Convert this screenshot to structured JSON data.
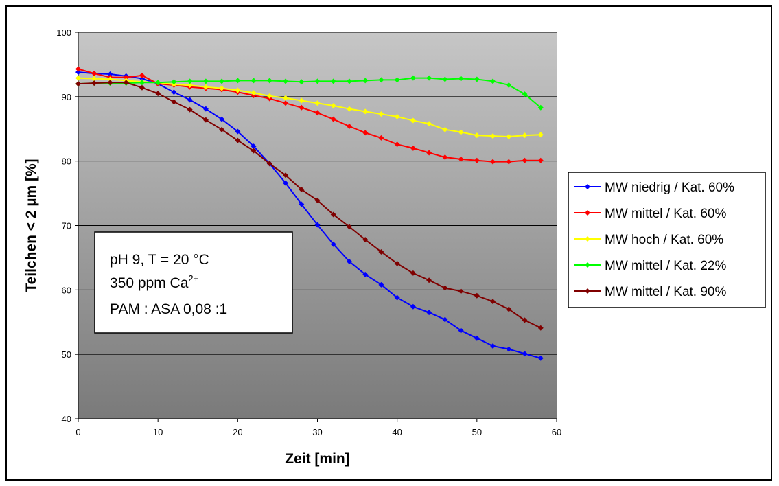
{
  "chart_data": {
    "type": "line",
    "xlabel": "Zeit [min]",
    "ylabel": "Teilchen < 2 µm [%]",
    "xlim": [
      0,
      60
    ],
    "ylim": [
      40,
      100
    ],
    "xticks": [
      0,
      10,
      20,
      30,
      40,
      50,
      60
    ],
    "yticks": [
      40,
      50,
      60,
      70,
      80,
      90,
      100
    ],
    "grid": "horizontal",
    "legend_position": "right",
    "x": [
      0,
      2,
      4,
      6,
      8,
      10,
      12,
      14,
      16,
      18,
      20,
      22,
      24,
      26,
      28,
      30,
      32,
      34,
      36,
      38,
      40,
      42,
      44,
      46,
      48,
      50,
      52,
      54,
      56,
      58
    ],
    "series": [
      {
        "name": "MW niedrig / Kat. 60%",
        "color": "#0000ff",
        "values": [
          93.8,
          93.6,
          93.5,
          93.2,
          92.8,
          92.0,
          90.7,
          89.5,
          88.1,
          86.5,
          84.6,
          82.3,
          79.6,
          76.6,
          73.3,
          70.1,
          67.1,
          64.4,
          62.4,
          60.8,
          58.8,
          57.4,
          56.5,
          55.4,
          53.7,
          52.5,
          51.3,
          50.8,
          50.1,
          49.4
        ]
      },
      {
        "name": "MW mittel / Kat. 60%",
        "color": "#ff0000",
        "values": [
          94.3,
          93.6,
          93.0,
          93.0,
          93.3,
          92.0,
          91.8,
          91.5,
          91.3,
          91.1,
          90.7,
          90.2,
          89.7,
          89.0,
          88.3,
          87.5,
          86.5,
          85.4,
          84.4,
          83.6,
          82.6,
          82.0,
          81.3,
          80.6,
          80.3,
          80.1,
          79.9,
          79.9,
          80.1,
          80.1
        ]
      },
      {
        "name": "MW hoch / Kat. 60%",
        "color": "#ffff00",
        "values": [
          92.9,
          92.8,
          92.7,
          92.5,
          92.3,
          92.2,
          91.9,
          91.8,
          91.5,
          91.3,
          91.0,
          90.6,
          90.1,
          89.8,
          89.4,
          89.0,
          88.6,
          88.1,
          87.7,
          87.3,
          86.9,
          86.3,
          85.8,
          84.9,
          84.5,
          84.0,
          83.9,
          83.8,
          84.0,
          84.1
        ]
      },
      {
        "name": "MW mittel / Kat. 22%",
        "color": "#00ff00",
        "values": [
          92.0,
          92.1,
          92.1,
          92.1,
          92.2,
          92.2,
          92.3,
          92.4,
          92.4,
          92.4,
          92.5,
          92.5,
          92.5,
          92.4,
          92.3,
          92.4,
          92.4,
          92.4,
          92.5,
          92.6,
          92.6,
          92.9,
          92.9,
          92.7,
          92.8,
          92.7,
          92.4,
          91.8,
          90.4,
          88.3
        ]
      },
      {
        "name": "MW mittel / Kat. 90%",
        "color": "#800000",
        "values": [
          92.0,
          92.1,
          92.2,
          92.2,
          91.4,
          90.5,
          89.2,
          88.0,
          86.4,
          84.9,
          83.2,
          81.6,
          79.6,
          77.8,
          75.6,
          73.9,
          71.7,
          69.8,
          67.8,
          65.9,
          64.1,
          62.6,
          61.5,
          60.3,
          59.8,
          59.1,
          58.2,
          57.0,
          55.3,
          54.1
        ]
      }
    ],
    "annotation": {
      "line1": "pH 9, T = 20 °C",
      "line2_base": "350 ppm Ca",
      "line2_sup": "2+",
      "line3": "PAM : ASA 0,08 :1"
    }
  }
}
